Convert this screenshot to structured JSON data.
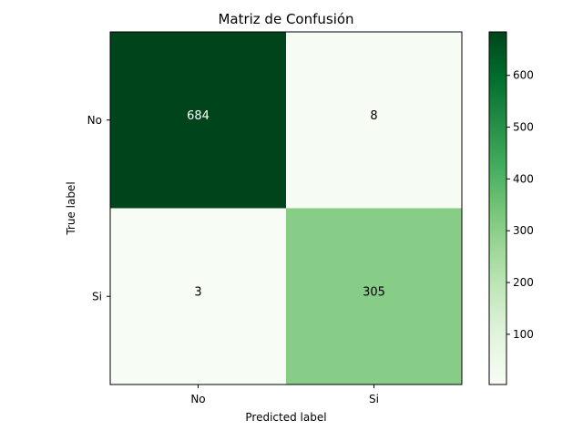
{
  "chart_data": {
    "type": "heatmap",
    "title": "Matriz de Confusión",
    "xlabel": "Predicted label",
    "ylabel": "True label",
    "x_categories": [
      "No",
      "Si"
    ],
    "y_categories": [
      "No",
      "Si"
    ],
    "values": [
      [
        684,
        8
      ],
      [
        3,
        305
      ]
    ],
    "colormap": "Greens",
    "colorbar": {
      "ticks": [
        100,
        200,
        300,
        400,
        500,
        600
      ],
      "range": [
        3,
        684
      ]
    },
    "colors": {
      "light": "#f7fcf5",
      "dark": "#00441b",
      "text_dark": "#000000",
      "text_light": "#ffffff"
    }
  }
}
